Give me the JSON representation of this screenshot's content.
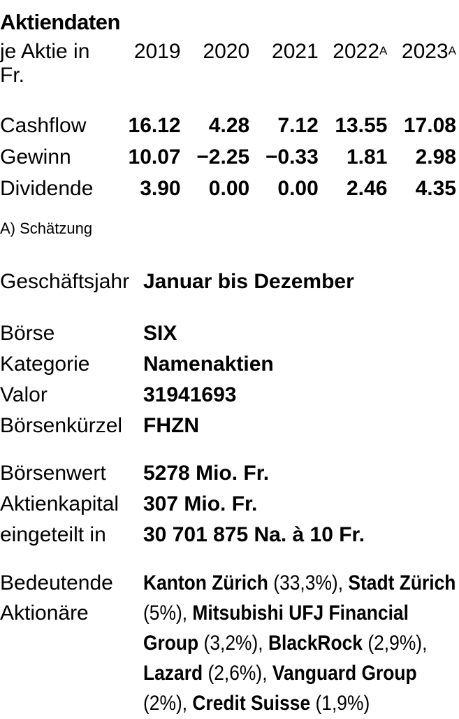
{
  "panel": {
    "title": "Aktiendaten"
  },
  "share_table": {
    "unit_label": "je Aktie in Fr.",
    "columns": [
      {
        "year": "2019",
        "sup": ""
      },
      {
        "year": "2020",
        "sup": ""
      },
      {
        "year": "2021",
        "sup": ""
      },
      {
        "year": "2022",
        "sup": "A"
      },
      {
        "year": "2023",
        "sup": "A"
      }
    ],
    "rows": [
      {
        "label": "Cashflow",
        "values": [
          "16.12",
          "4.28",
          "7.12",
          "13.55",
          "17.08"
        ]
      },
      {
        "label": "Gewinn",
        "values": [
          "10.07",
          "−2.25",
          "−0.33",
          "1.81",
          "2.98"
        ]
      },
      {
        "label": "Dividende",
        "values": [
          "3.90",
          "0.00",
          "0.00",
          "2.46",
          "4.35"
        ]
      }
    ],
    "footnote": "A) Schätzung"
  },
  "details": {
    "fiscal_year": {
      "label": "Geschäftsjahr",
      "value": "Januar bis Dezember"
    },
    "listing": [
      {
        "label": "Börse",
        "value": "SIX"
      },
      {
        "label": "Kategorie",
        "value": "Namenaktien"
      },
      {
        "label": "Valor",
        "value": "31941693"
      },
      {
        "label": "Börsenkürzel",
        "value": "FHZN"
      }
    ],
    "capital": [
      {
        "label": "Börsenwert",
        "value": "5278 Mio. Fr."
      },
      {
        "label": "Aktienkapital",
        "value": "307 Mio. Fr."
      },
      {
        "label": "eingeteilt in",
        "value": "30 701 875 Na. à 10 Fr."
      }
    ],
    "shareholders": {
      "label": "Bedeutende Aktionäre",
      "items": [
        {
          "name": "Kanton Zürich",
          "stake": "(33,3%)"
        },
        {
          "name": "Stadt Zürich",
          "stake": "(5%)"
        },
        {
          "name": "Mitsubishi UFJ Financial Group",
          "stake": "(3,2%)"
        },
        {
          "name": "BlackRock",
          "stake": "(2,9%)"
        },
        {
          "name": "Lazard",
          "stake": "(2,6%)"
        },
        {
          "name": "Vanguard Group",
          "stake": "(2%)"
        },
        {
          "name": "Credit Suisse",
          "stake": "(1,9%)"
        }
      ]
    }
  },
  "colors": {
    "text": "#000000",
    "rule_gray": "#9c9c9c",
    "border_black": "#000000",
    "background": "#ffffff"
  }
}
